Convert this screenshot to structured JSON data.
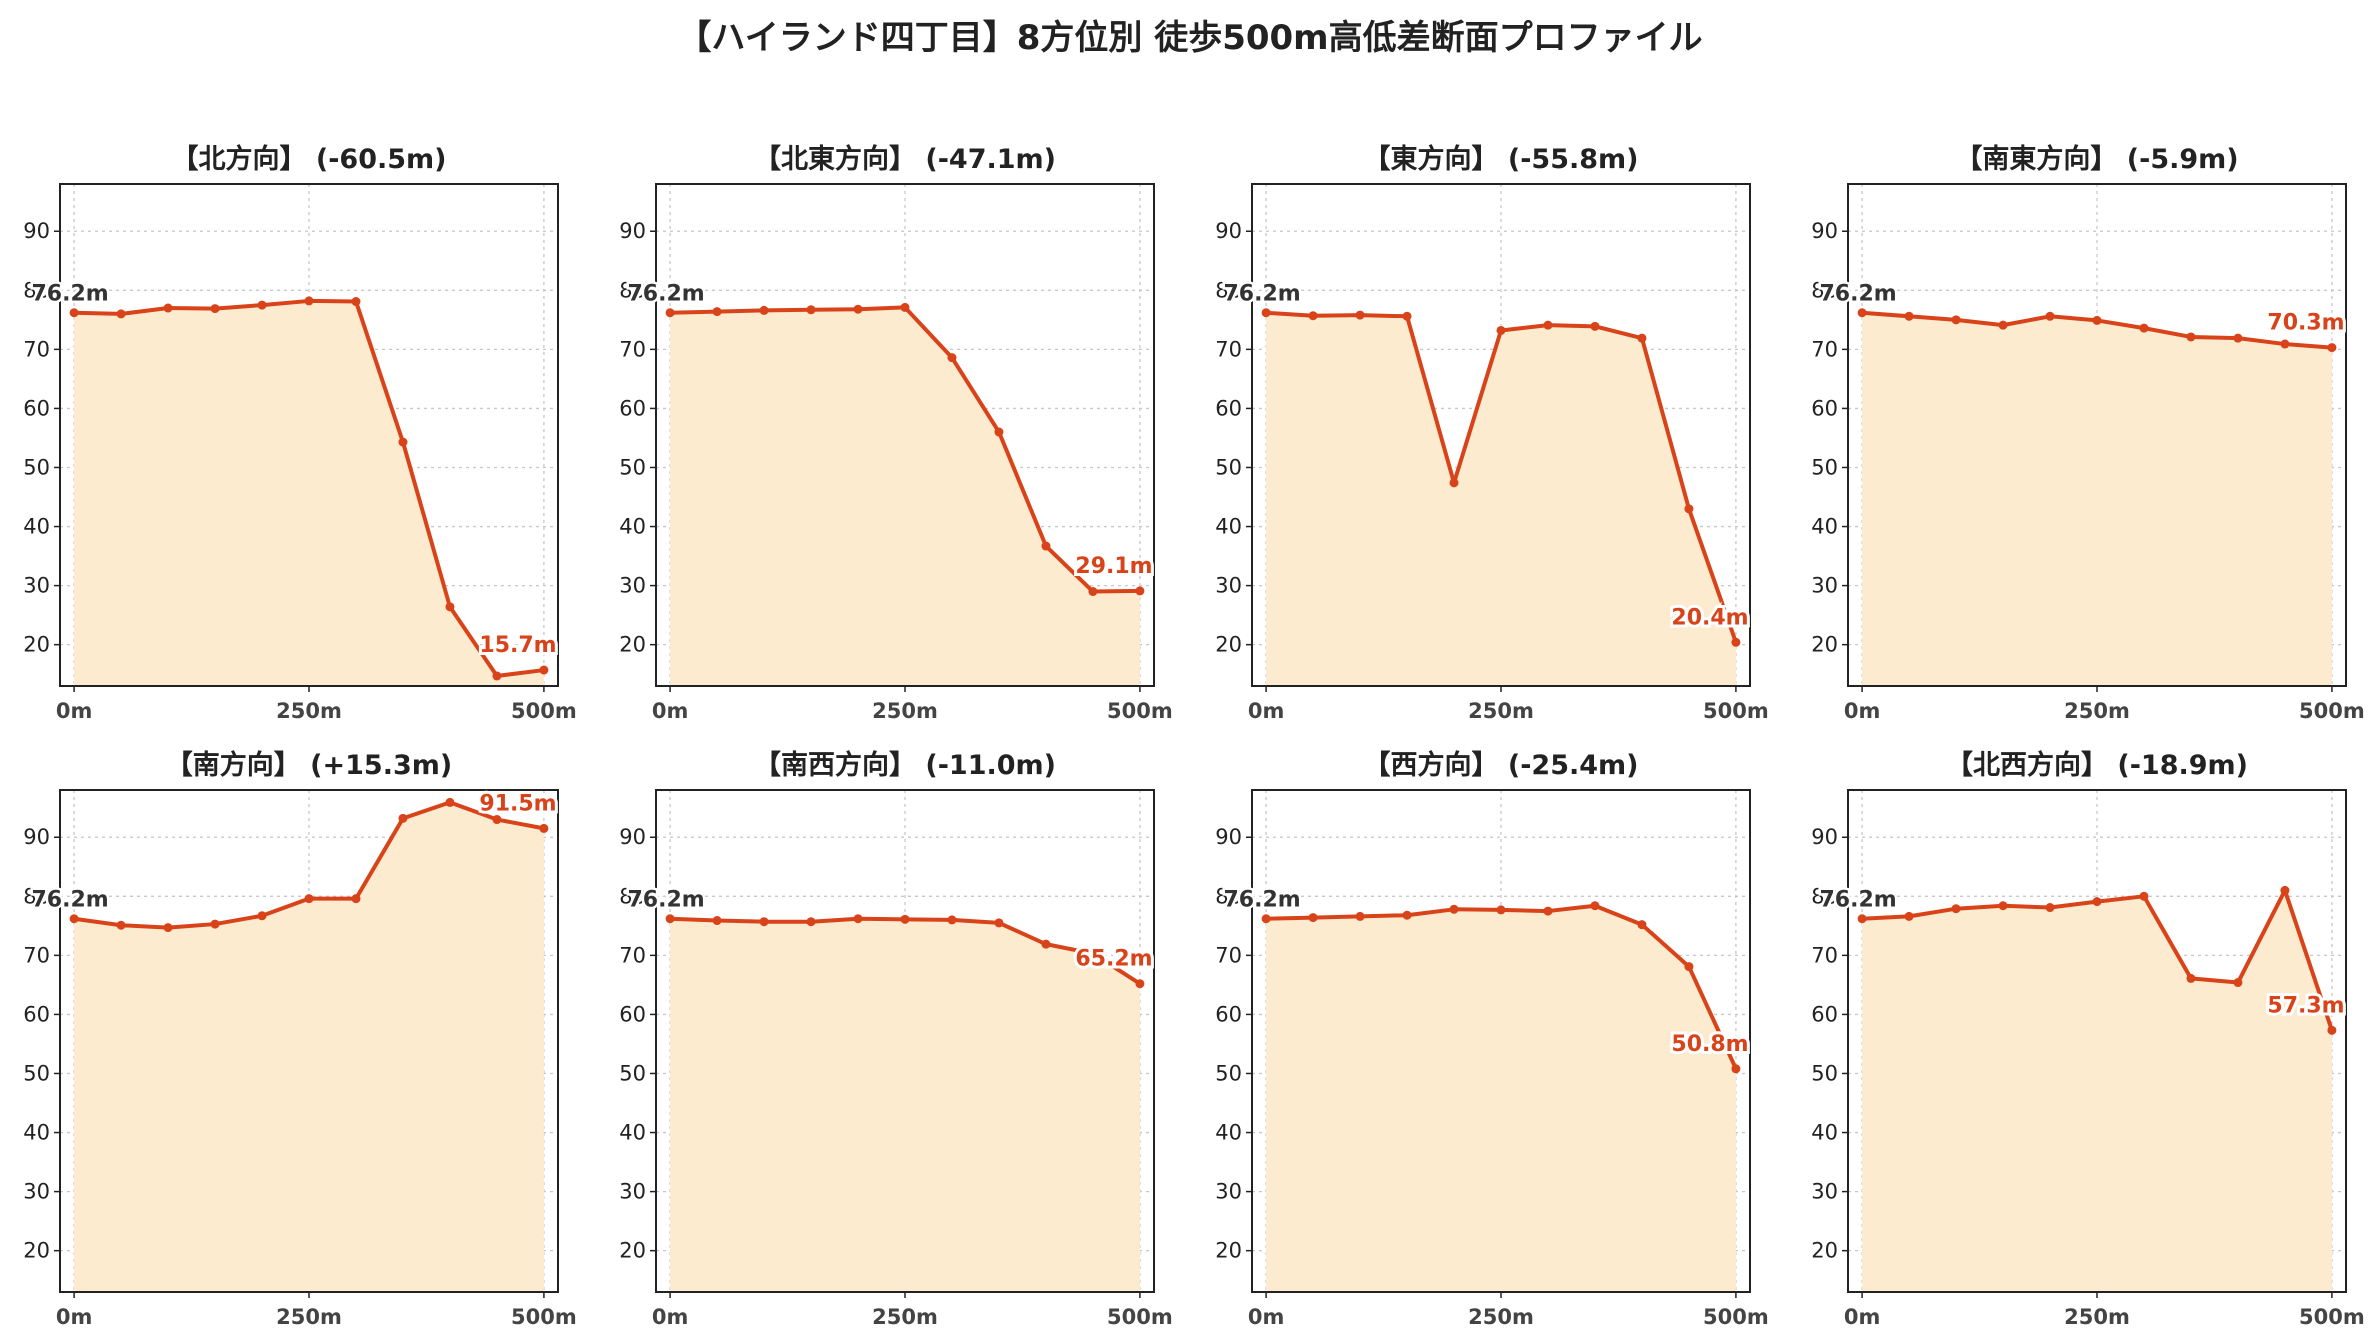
{
  "title": "【ハイランド四丁目】8方位別 徒歩500m高低差断面プロファイル",
  "colors": {
    "line": "#d9431a",
    "fill": "#fdebd0",
    "grid": "#c8c8c8",
    "end_label": "#d9431a",
    "start_label": "#333333"
  },
  "chart_data": [
    {
      "type": "area",
      "title": "【北方向】 (-60.5m)",
      "x": [
        0,
        50,
        100,
        150,
        200,
        250,
        300,
        350,
        400,
        450,
        500
      ],
      "values": [
        76.2,
        76.0,
        77.0,
        76.9,
        77.5,
        78.2,
        78.1,
        54.3,
        26.4,
        14.7,
        15.7
      ],
      "start_label": "76.2m",
      "end_label": "15.7m",
      "ylim": [
        13,
        98
      ],
      "yticks": [
        20,
        30,
        40,
        50,
        60,
        70,
        80,
        90
      ],
      "xticks": [
        0,
        250,
        500
      ],
      "xticklabels": [
        "0m",
        "250m",
        "500m"
      ],
      "grid": true
    },
    {
      "type": "area",
      "title": "【北東方向】 (-47.1m)",
      "x": [
        0,
        50,
        100,
        150,
        200,
        250,
        300,
        350,
        400,
        450,
        500
      ],
      "values": [
        76.2,
        76.4,
        76.6,
        76.7,
        76.8,
        77.1,
        68.6,
        56.0,
        36.7,
        29.0,
        29.1
      ],
      "start_label": "76.2m",
      "end_label": "29.1m",
      "ylim": [
        13,
        98
      ],
      "yticks": [
        20,
        30,
        40,
        50,
        60,
        70,
        80,
        90
      ],
      "xticks": [
        0,
        250,
        500
      ],
      "xticklabels": [
        "0m",
        "250m",
        "500m"
      ],
      "grid": true
    },
    {
      "type": "area",
      "title": "【東方向】 (-55.8m)",
      "x": [
        0,
        50,
        100,
        150,
        200,
        250,
        300,
        350,
        400,
        450,
        500
      ],
      "values": [
        76.2,
        75.7,
        75.8,
        75.6,
        47.4,
        73.2,
        74.1,
        73.9,
        71.9,
        43.0,
        20.4
      ],
      "start_label": "76.2m",
      "end_label": "20.4m",
      "ylim": [
        13,
        98
      ],
      "yticks": [
        20,
        30,
        40,
        50,
        60,
        70,
        80,
        90
      ],
      "xticks": [
        0,
        250,
        500
      ],
      "xticklabels": [
        "0m",
        "250m",
        "500m"
      ],
      "grid": true
    },
    {
      "type": "area",
      "title": "【南東方向】 (-5.9m)",
      "x": [
        0,
        50,
        100,
        150,
        200,
        250,
        300,
        350,
        400,
        450,
        500
      ],
      "values": [
        76.2,
        75.6,
        75.0,
        74.1,
        75.6,
        74.9,
        73.6,
        72.1,
        71.9,
        70.9,
        70.3
      ],
      "start_label": "76.2m",
      "end_label": "70.3m",
      "ylim": [
        13,
        98
      ],
      "yticks": [
        20,
        30,
        40,
        50,
        60,
        70,
        80,
        90
      ],
      "xticks": [
        0,
        250,
        500
      ],
      "xticklabels": [
        "0m",
        "250m",
        "500m"
      ],
      "grid": true
    },
    {
      "type": "area",
      "title": "【南方向】 (+15.3m)",
      "x": [
        0,
        50,
        100,
        150,
        200,
        250,
        300,
        350,
        400,
        450,
        500
      ],
      "values": [
        76.2,
        75.1,
        74.7,
        75.3,
        76.7,
        79.6,
        79.6,
        93.2,
        95.9,
        93.0,
        91.5
      ],
      "start_label": "76.2m",
      "end_label": "91.5m",
      "ylim": [
        13,
        98
      ],
      "yticks": [
        20,
        30,
        40,
        50,
        60,
        70,
        80,
        90
      ],
      "xticks": [
        0,
        250,
        500
      ],
      "xticklabels": [
        "0m",
        "250m",
        "500m"
      ],
      "grid": true
    },
    {
      "type": "area",
      "title": "【南西方向】 (-11.0m)",
      "x": [
        0,
        50,
        100,
        150,
        200,
        250,
        300,
        350,
        400,
        450,
        500
      ],
      "values": [
        76.2,
        75.9,
        75.7,
        75.7,
        76.2,
        76.1,
        76.0,
        75.5,
        71.9,
        70.3,
        65.2
      ],
      "start_label": "76.2m",
      "end_label": "65.2m",
      "ylim": [
        13,
        98
      ],
      "yticks": [
        20,
        30,
        40,
        50,
        60,
        70,
        80,
        90
      ],
      "xticks": [
        0,
        250,
        500
      ],
      "xticklabels": [
        "0m",
        "250m",
        "500m"
      ],
      "grid": true
    },
    {
      "type": "area",
      "title": "【西方向】 (-25.4m)",
      "x": [
        0,
        50,
        100,
        150,
        200,
        250,
        300,
        350,
        400,
        450,
        500
      ],
      "values": [
        76.2,
        76.4,
        76.6,
        76.8,
        77.8,
        77.7,
        77.5,
        78.4,
        75.2,
        68.1,
        50.8
      ],
      "start_label": "76.2m",
      "end_label": "50.8m",
      "ylim": [
        13,
        98
      ],
      "yticks": [
        20,
        30,
        40,
        50,
        60,
        70,
        80,
        90
      ],
      "xticks": [
        0,
        250,
        500
      ],
      "xticklabels": [
        "0m",
        "250m",
        "500m"
      ],
      "grid": true
    },
    {
      "type": "area",
      "title": "【北西方向】 (-18.9m)",
      "x": [
        0,
        50,
        100,
        150,
        200,
        250,
        300,
        350,
        400,
        450,
        500
      ],
      "values": [
        76.2,
        76.6,
        77.9,
        78.4,
        78.1,
        79.1,
        80.0,
        66.1,
        65.4,
        81.0,
        57.3
      ],
      "start_label": "76.2m",
      "end_label": "57.3m",
      "ylim": [
        13,
        98
      ],
      "yticks": [
        20,
        30,
        40,
        50,
        60,
        70,
        80,
        90
      ],
      "xticks": [
        0,
        250,
        500
      ],
      "xticklabels": [
        "0m",
        "250m",
        "500m"
      ],
      "grid": true
    }
  ]
}
